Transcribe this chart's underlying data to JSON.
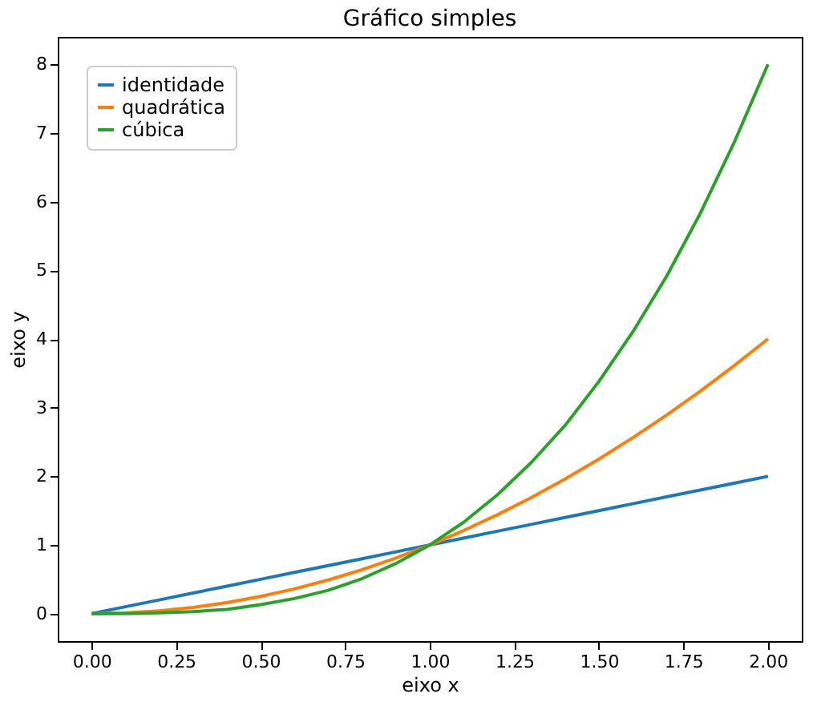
{
  "chart_data": {
    "type": "line",
    "title": "Gráfico simples",
    "xlabel": "eixo x",
    "ylabel": "eixo y",
    "x": [
      0,
      0.1,
      0.2,
      0.3,
      0.4,
      0.5,
      0.6,
      0.7,
      0.8,
      0.9,
      1,
      1.1,
      1.2,
      1.3,
      1.4,
      1.5,
      1.6,
      1.7,
      1.8,
      1.9,
      2
    ],
    "series": [
      {
        "name": "identidade",
        "color": "#1f77b4",
        "values": [
          0,
          0.1,
          0.2,
          0.3,
          0.4,
          0.5,
          0.6,
          0.7,
          0.8,
          0.9,
          1,
          1.1,
          1.2,
          1.3,
          1.4,
          1.5,
          1.6,
          1.7,
          1.8,
          1.9,
          2
        ]
      },
      {
        "name": "quadrática",
        "color": "#ff7f0e",
        "values": [
          0,
          0.01,
          0.04,
          0.09,
          0.16,
          0.25,
          0.36,
          0.49,
          0.64,
          0.81,
          1,
          1.21,
          1.44,
          1.69,
          1.96,
          2.25,
          2.56,
          2.89,
          3.24,
          3.61,
          4
        ]
      },
      {
        "name": "cúbica",
        "color": "#2ca02c",
        "values": [
          0,
          0,
          0.01,
          0.03,
          0.06,
          0.13,
          0.22,
          0.34,
          0.51,
          0.73,
          1,
          1.33,
          1.73,
          2.2,
          2.74,
          3.38,
          4.1,
          4.91,
          5.83,
          6.86,
          8
        ]
      }
    ],
    "xlim": [
      -0.1,
      2.1
    ],
    "ylim": [
      -0.4,
      8.4
    ],
    "xticks": [
      {
        "value": 0,
        "label": "0.00"
      },
      {
        "value": 0.25,
        "label": "0.25"
      },
      {
        "value": 0.5,
        "label": "0.50"
      },
      {
        "value": 0.75,
        "label": "0.75"
      },
      {
        "value": 1,
        "label": "1.00"
      },
      {
        "value": 1.25,
        "label": "1.25"
      },
      {
        "value": 1.5,
        "label": "1.50"
      },
      {
        "value": 1.75,
        "label": "1.75"
      },
      {
        "value": 2,
        "label": "2.00"
      }
    ],
    "yticks": [
      0,
      1,
      2,
      3,
      4,
      5,
      6,
      7,
      8
    ],
    "grid": false,
    "legend": "top left",
    "marker": "none",
    "line_style": "solid"
  }
}
